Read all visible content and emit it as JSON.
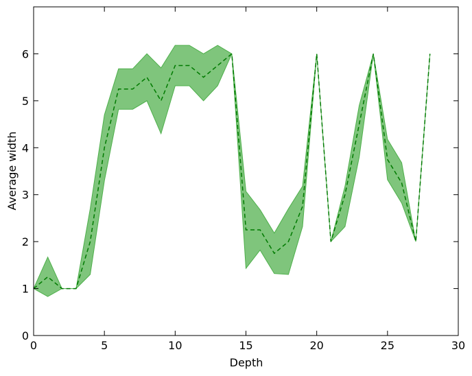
{
  "chart_data": {
    "type": "area",
    "xlabel": "Depth",
    "ylabel": "Average width",
    "xlim": [
      0,
      30
    ],
    "ylim": [
      0,
      7
    ],
    "x_ticks": [
      0,
      5,
      10,
      15,
      20,
      25,
      30
    ],
    "y_ticks": [
      0,
      1,
      2,
      3,
      4,
      5,
      6
    ],
    "grid": false,
    "colors": {
      "band_fill": "#4daf4a",
      "line": "#007a00"
    },
    "x": [
      0,
      1,
      2,
      3,
      4,
      5,
      6,
      7,
      8,
      9,
      10,
      11,
      12,
      13,
      14,
      15,
      16,
      17,
      18,
      19,
      20,
      21,
      22,
      23,
      24,
      25,
      26,
      27,
      28
    ],
    "series": [
      {
        "role": "mean",
        "style": "dashed",
        "values": [
          1.0,
          1.25,
          1.0,
          1.0,
          2.0,
          4.0,
          5.25,
          5.25,
          5.5,
          5.0,
          5.75,
          5.75,
          5.5,
          5.75,
          6.0,
          2.25,
          2.25,
          1.75,
          2.0,
          2.75,
          6.0,
          2.0,
          3.0,
          4.5,
          6.0,
          3.75,
          3.25,
          2.0,
          6.0
        ]
      },
      {
        "role": "upper",
        "values": [
          1.0,
          1.67,
          1.0,
          1.0,
          2.7,
          4.7,
          5.68,
          5.68,
          6.0,
          5.7,
          6.18,
          6.18,
          6.0,
          6.18,
          6.0,
          3.07,
          2.68,
          2.18,
          2.7,
          3.18,
          6.0,
          2.0,
          3.18,
          4.9,
          6.0,
          4.18,
          3.68,
          2.0,
          6.0
        ]
      },
      {
        "role": "lower",
        "values": [
          1.0,
          0.83,
          1.0,
          1.0,
          1.3,
          3.3,
          4.82,
          4.82,
          5.0,
          4.3,
          5.32,
          5.32,
          5.0,
          5.32,
          6.0,
          1.43,
          1.82,
          1.32,
          1.3,
          2.32,
          6.0,
          2.0,
          2.32,
          3.8,
          6.0,
          3.32,
          2.82,
          2.0,
          6.0
        ]
      }
    ]
  }
}
